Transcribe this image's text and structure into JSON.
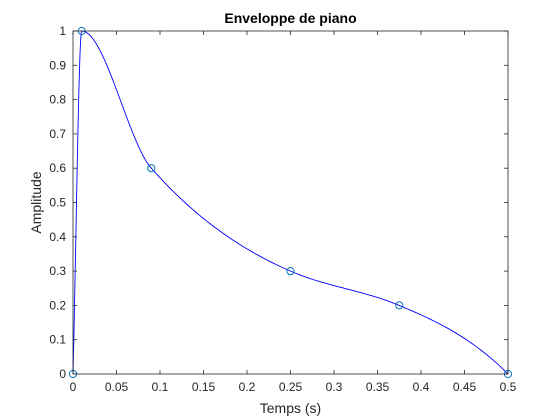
{
  "chart_data": {
    "type": "line",
    "title": "Enveloppe de piano",
    "xlabel": "Temps (s)",
    "ylabel": "Amplitude",
    "xlim": [
      0,
      0.5
    ],
    "ylim": [
      0,
      1
    ],
    "xticks": [
      0,
      0.05,
      0.1,
      0.15,
      0.2,
      0.25,
      0.3,
      0.35,
      0.4,
      0.45,
      0.5
    ],
    "yticks": [
      0,
      0.1,
      0.2,
      0.3,
      0.4,
      0.5,
      0.6,
      0.7,
      0.8,
      0.9,
      1
    ],
    "xtick_labels": [
      "0",
      "0.05",
      "0.1",
      "0.15",
      "0.2",
      "0.25",
      "0.3",
      "0.35",
      "0.4",
      "0.45",
      "0.5"
    ],
    "ytick_labels": [
      "0",
      "0.1",
      "0.2",
      "0.3",
      "0.4",
      "0.5",
      "0.6",
      "0.7",
      "0.8",
      "0.9",
      "1"
    ],
    "grid": false,
    "box": true,
    "series": [
      {
        "style": "interpolated-line",
        "color": "#0000ff",
        "x": [
          0,
          0.01,
          0.09,
          0.25,
          0.375,
          0.5
        ],
        "y": [
          0,
          1,
          0.6,
          0.3,
          0.2,
          0
        ],
        "markers": "circle",
        "marker_color": "#0072bd"
      }
    ]
  }
}
